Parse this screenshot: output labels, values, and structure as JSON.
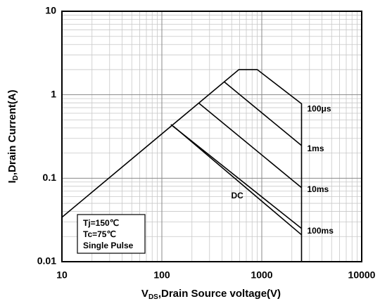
{
  "chart_data": {
    "type": "line",
    "x_label": {
      "main": "V",
      "sub": "DS",
      "rest": ",Drain Source voltage(V)"
    },
    "y_label": {
      "main": "I",
      "sub": "D",
      "rest": ",Drain Current(A)"
    },
    "xscale": "log",
    "yscale": "log",
    "grid": true,
    "minor_grid": true,
    "xlim": [
      10,
      10000
    ],
    "ylim": [
      0.01,
      10
    ],
    "xticks": [
      10,
      100,
      1000,
      10000
    ],
    "yticks": [
      0.01,
      0.1,
      1,
      10
    ],
    "annotations": [
      "Tj=150℃",
      "Tc=75℃",
      "Single Pulse"
    ],
    "series": [
      {
        "name": "100μs",
        "color": "#000000",
        "x": [
          10,
          590,
          900,
          2500,
          2500
        ],
        "values": [
          0.034,
          2,
          2,
          0.78,
          0.01
        ]
      },
      {
        "name": "1ms",
        "color": "#000000",
        "x": [
          417,
          2500
        ],
        "values": [
          1.44,
          0.246
        ]
      },
      {
        "name": "10ms",
        "color": "#000000",
        "x": [
          236,
          2500
        ],
        "values": [
          0.787,
          0.077
        ]
      },
      {
        "name": "100ms",
        "color": "#000000",
        "x": [
          123,
          2500
        ],
        "values": [
          0.44,
          0.025
        ]
      },
      {
        "name": "DC",
        "color": "#000000",
        "x": [
          130,
          2500
        ],
        "values": [
          0.42,
          0.021
        ]
      }
    ]
  }
}
